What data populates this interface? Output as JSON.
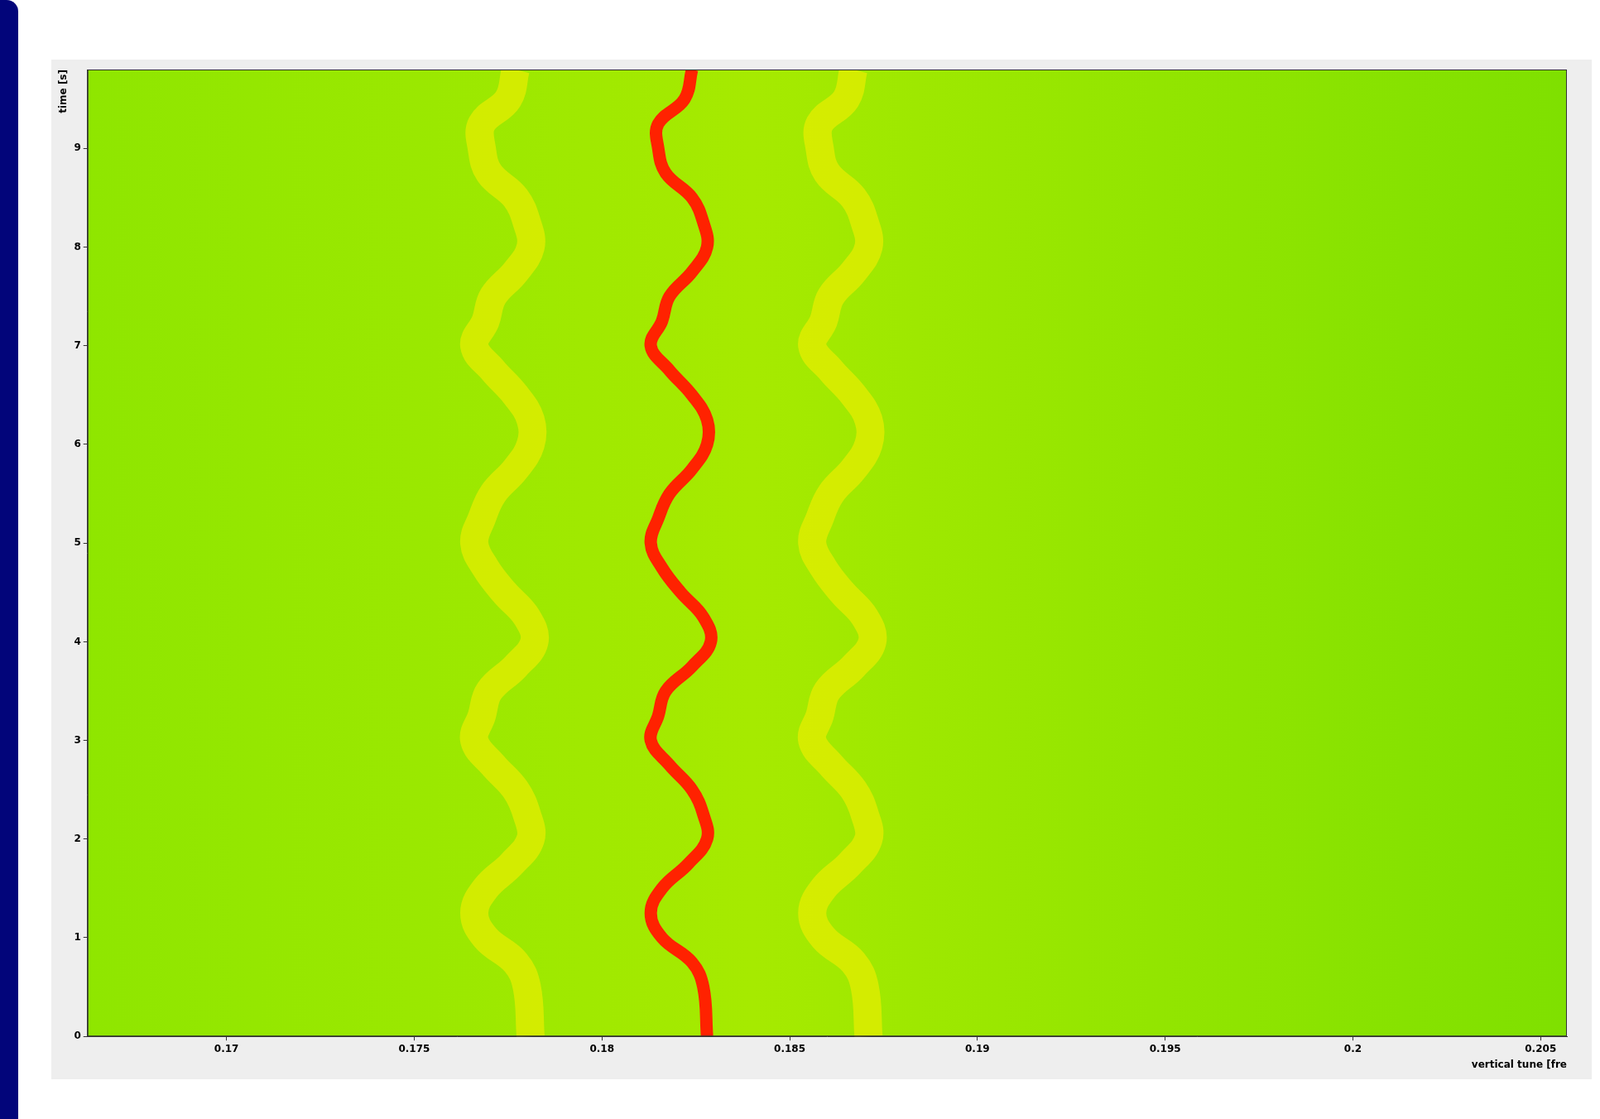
{
  "chart_data": {
    "type": "line",
    "x_label": "vertical tune [fre",
    "y_label": "time [s]",
    "xlim": [
      0.1663,
      0.2057
    ],
    "xticks": [
      0.17,
      0.175,
      0.18,
      0.185,
      0.19,
      0.195,
      0.2,
      0.205
    ],
    "ylim": [
      0,
      9.8
    ],
    "yticks": [
      0,
      1,
      2,
      3,
      4,
      5,
      6,
      7,
      8,
      9
    ],
    "grid": false,
    "series": [
      {
        "color": "#ffee00",
        "line_style": "solid",
        "x": [
          0.1781,
          0.178,
          0.1777,
          0.1769,
          0.1766,
          0.1769,
          0.1776,
          0.1781,
          0.178,
          0.1777,
          0.1771,
          0.1766,
          0.1768,
          0.177,
          0.1777,
          0.1782,
          0.178,
          0.1774,
          0.1769,
          0.1766,
          0.1768,
          0.1771,
          0.1777,
          0.1781,
          0.1781,
          0.1777,
          0.1771,
          0.1766,
          0.1769,
          0.1771,
          0.1777,
          0.1781,
          0.178,
          0.1777,
          0.177,
          0.1768,
          0.1768,
          0.1775,
          0.1777
        ],
        "y": [
          0,
          0.5,
          0.75,
          1,
          1.25,
          1.5,
          1.75,
          2,
          2.25,
          2.5,
          2.75,
          3,
          3.25,
          3.5,
          3.75,
          4,
          4.25,
          4.5,
          4.75,
          5,
          5.25,
          5.5,
          5.75,
          6,
          6.25,
          6.5,
          6.75,
          7,
          7.25,
          7.5,
          7.75,
          8,
          8.25,
          8.5,
          8.75,
          9,
          9.25,
          9.5,
          9.8
        ]
      },
      {
        "color": "#ffee00",
        "line_style": "solid",
        "x": [
          0.1871,
          0.187,
          0.1867,
          0.1859,
          0.1856,
          0.1859,
          0.1866,
          0.1871,
          0.187,
          0.1867,
          0.1861,
          0.1856,
          0.1858,
          0.186,
          0.1867,
          0.1872,
          0.187,
          0.1864,
          0.1859,
          0.1856,
          0.1858,
          0.1861,
          0.1867,
          0.1871,
          0.1871,
          0.1867,
          0.1861,
          0.1856,
          0.1859,
          0.1861,
          0.1867,
          0.1871,
          0.187,
          0.1867,
          0.186,
          0.1858,
          0.1858,
          0.1865,
          0.1867
        ],
        "y": [
          0,
          0.5,
          0.75,
          1,
          1.25,
          1.5,
          1.75,
          2,
          2.25,
          2.5,
          2.75,
          3,
          3.25,
          3.5,
          3.75,
          4,
          4.25,
          4.5,
          4.75,
          5,
          5.25,
          5.5,
          5.75,
          6,
          6.25,
          6.5,
          6.75,
          7,
          7.25,
          7.5,
          7.75,
          8,
          8.25,
          8.5,
          8.75,
          9,
          9.25,
          9.5,
          9.8
        ]
      },
      {
        "color": "#ff2200",
        "line_style": "solid",
        "x": [
          0.1828,
          0.1827,
          0.1824,
          0.1816,
          0.1813,
          0.1816,
          0.1823,
          0.1828,
          0.1827,
          0.1824,
          0.1818,
          0.1813,
          0.1815,
          0.1817,
          0.1824,
          0.1829,
          0.1827,
          0.1821,
          0.1816,
          0.1813,
          0.1815,
          0.1818,
          0.1824,
          0.1828,
          0.1828,
          0.1824,
          0.1818,
          0.1813,
          0.1816,
          0.1818,
          0.1824,
          0.1828,
          0.1827,
          0.1824,
          0.1817,
          0.1815,
          0.1815,
          0.1822,
          0.1824
        ],
        "y": [
          0,
          0.5,
          0.75,
          1,
          1.25,
          1.5,
          1.75,
          2,
          2.25,
          2.5,
          2.75,
          3,
          3.25,
          3.5,
          3.75,
          4,
          4.25,
          4.5,
          4.75,
          5,
          5.25,
          5.5,
          5.75,
          6,
          6.25,
          6.5,
          6.75,
          7,
          7.25,
          7.5,
          7.75,
          8,
          8.25,
          8.5,
          8.75,
          9,
          9.25,
          9.5,
          9.8
        ]
      }
    ]
  }
}
